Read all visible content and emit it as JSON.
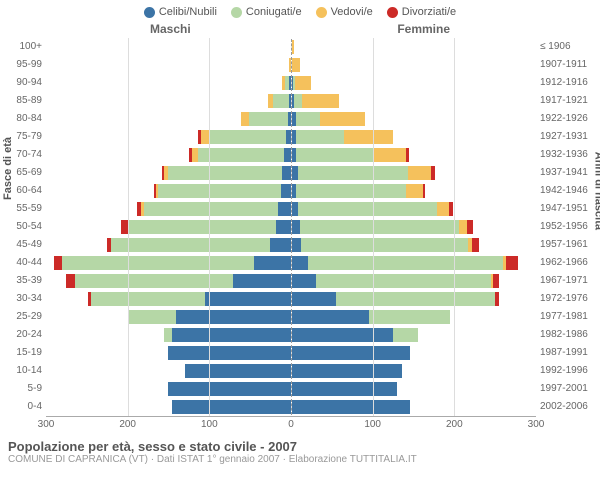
{
  "legend": {
    "items": [
      {
        "label": "Celibi/Nubili",
        "color": "#3c74a6"
      },
      {
        "label": "Coniugati/e",
        "color": "#b5d7a6"
      },
      {
        "label": "Vedovi/e",
        "color": "#f5c15c"
      },
      {
        "label": "Divorziati/e",
        "color": "#cc2a27"
      }
    ]
  },
  "side_labels": {
    "male": "Maschi",
    "female": "Femmine"
  },
  "axis_titles": {
    "left": "Fasce di età",
    "right": "Anni di nascita"
  },
  "age_groups": [
    "100+",
    "95-99",
    "90-94",
    "85-89",
    "80-84",
    "75-79",
    "70-74",
    "65-69",
    "60-64",
    "55-59",
    "50-54",
    "45-49",
    "40-44",
    "35-39",
    "30-34",
    "25-29",
    "20-24",
    "15-19",
    "10-14",
    "5-9",
    "0-4"
  ],
  "birth_years": [
    "≤ 1906",
    "1907-1911",
    "1912-1916",
    "1917-1921",
    "1922-1926",
    "1927-1931",
    "1932-1936",
    "1937-1941",
    "1942-1946",
    "1947-1951",
    "1952-1956",
    "1957-1961",
    "1962-1966",
    "1967-1971",
    "1972-1976",
    "1977-1981",
    "1982-1986",
    "1987-1991",
    "1992-1996",
    "1997-2001",
    "2002-2006"
  ],
  "colors": {
    "celibi": "#3c74a6",
    "coniugati": "#b5d7a6",
    "vedovi": "#f5c15c",
    "divorziati": "#cc2a27",
    "background": "#ffffff",
    "grid": "#dddddd"
  },
  "xaxis": {
    "max": 300,
    "ticks": [
      300,
      200,
      100,
      0,
      100,
      200,
      300
    ]
  },
  "data": [
    {
      "m": {
        "cel": 0,
        "con": 0,
        "ved": 0,
        "div": 0
      },
      "f": {
        "cel": 0,
        "con": 0,
        "ved": 3,
        "div": 0
      }
    },
    {
      "m": {
        "cel": 0,
        "con": 0,
        "ved": 2,
        "div": 0
      },
      "f": {
        "cel": 0,
        "con": 0,
        "ved": 10,
        "div": 0
      }
    },
    {
      "m": {
        "cel": 2,
        "con": 5,
        "ved": 3,
        "div": 0
      },
      "f": {
        "cel": 2,
        "con": 2,
        "ved": 20,
        "div": 0
      }
    },
    {
      "m": {
        "cel": 2,
        "con": 20,
        "ved": 6,
        "div": 0
      },
      "f": {
        "cel": 3,
        "con": 10,
        "ved": 45,
        "div": 0
      }
    },
    {
      "m": {
        "cel": 3,
        "con": 48,
        "ved": 10,
        "div": 0
      },
      "f": {
        "cel": 5,
        "con": 30,
        "ved": 55,
        "div": 0
      }
    },
    {
      "m": {
        "cel": 5,
        "con": 95,
        "ved": 10,
        "div": 3
      },
      "f": {
        "cel": 5,
        "con": 60,
        "ved": 60,
        "div": 0
      }
    },
    {
      "m": {
        "cel": 8,
        "con": 105,
        "ved": 8,
        "div": 3
      },
      "f": {
        "cel": 6,
        "con": 95,
        "ved": 40,
        "div": 3
      }
    },
    {
      "m": {
        "cel": 10,
        "con": 140,
        "ved": 5,
        "div": 3
      },
      "f": {
        "cel": 8,
        "con": 135,
        "ved": 28,
        "div": 5
      }
    },
    {
      "m": {
        "cel": 12,
        "con": 150,
        "ved": 3,
        "div": 3
      },
      "f": {
        "cel": 6,
        "con": 135,
        "ved": 20,
        "div": 3
      }
    },
    {
      "m": {
        "cel": 15,
        "con": 165,
        "ved": 3,
        "div": 5
      },
      "f": {
        "cel": 8,
        "con": 170,
        "ved": 15,
        "div": 5
      }
    },
    {
      "m": {
        "cel": 18,
        "con": 180,
        "ved": 2,
        "div": 8
      },
      "f": {
        "cel": 10,
        "con": 195,
        "ved": 10,
        "div": 8
      }
    },
    {
      "m": {
        "cel": 25,
        "con": 195,
        "ved": 0,
        "div": 5
      },
      "f": {
        "cel": 12,
        "con": 205,
        "ved": 5,
        "div": 8
      }
    },
    {
      "m": {
        "cel": 45,
        "con": 235,
        "ved": 0,
        "div": 10
      },
      "f": {
        "cel": 20,
        "con": 240,
        "ved": 3,
        "div": 15
      }
    },
    {
      "m": {
        "cel": 70,
        "con": 195,
        "ved": 0,
        "div": 10
      },
      "f": {
        "cel": 30,
        "con": 215,
        "ved": 2,
        "div": 8
      }
    },
    {
      "m": {
        "cel": 105,
        "con": 140,
        "ved": 0,
        "div": 3
      },
      "f": {
        "cel": 55,
        "con": 195,
        "ved": 0,
        "div": 5
      }
    },
    {
      "m": {
        "cel": 140,
        "con": 60,
        "ved": 0,
        "div": 0
      },
      "f": {
        "cel": 95,
        "con": 100,
        "ved": 0,
        "div": 0
      }
    },
    {
      "m": {
        "cel": 145,
        "con": 10,
        "ved": 0,
        "div": 0
      },
      "f": {
        "cel": 125,
        "con": 30,
        "ved": 0,
        "div": 0
      }
    },
    {
      "m": {
        "cel": 150,
        "con": 0,
        "ved": 0,
        "div": 0
      },
      "f": {
        "cel": 145,
        "con": 0,
        "ved": 0,
        "div": 0
      }
    },
    {
      "m": {
        "cel": 130,
        "con": 0,
        "ved": 0,
        "div": 0
      },
      "f": {
        "cel": 135,
        "con": 0,
        "ved": 0,
        "div": 0
      }
    },
    {
      "m": {
        "cel": 150,
        "con": 0,
        "ved": 0,
        "div": 0
      },
      "f": {
        "cel": 130,
        "con": 0,
        "ved": 0,
        "div": 0
      }
    },
    {
      "m": {
        "cel": 145,
        "con": 0,
        "ved": 0,
        "div": 0
      },
      "f": {
        "cel": 145,
        "con": 0,
        "ved": 0,
        "div": 0
      }
    }
  ],
  "footer": {
    "title": "Popolazione per età, sesso e stato civile - 2007",
    "subtitle": "COMUNE DI CAPRANICA (VT) · Dati ISTAT 1° gennaio 2007 · Elaborazione TUTTITALIA.IT"
  }
}
